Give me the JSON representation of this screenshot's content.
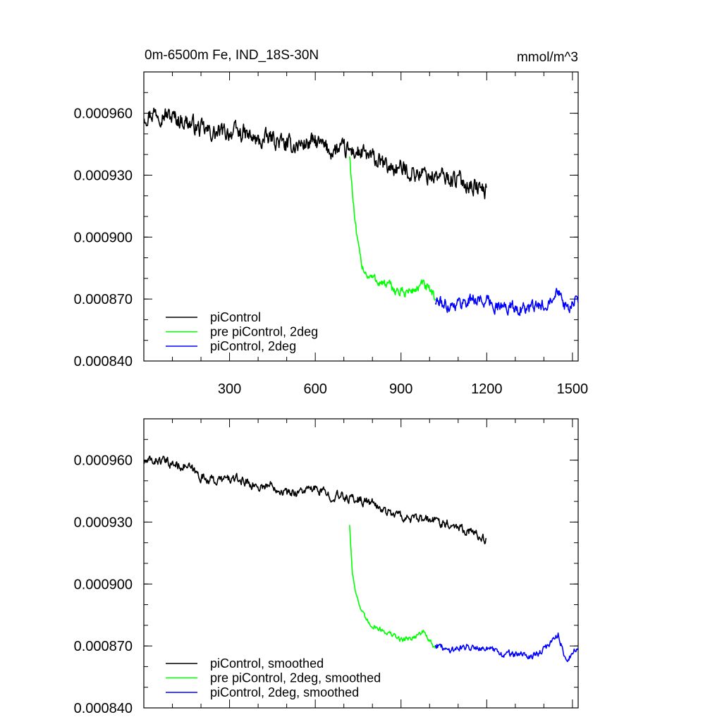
{
  "figure": {
    "title_left": "0m-6500m Fe, IND_18S-30N",
    "title_right": "mmol/m^3"
  },
  "chart_data": [
    {
      "type": "line",
      "title": "0m-6500m Fe, IND_18S-30N",
      "units": "mmol/m^3",
      "xlim": [
        0,
        1520
      ],
      "ylim": [
        0.00084,
        0.00098
      ],
      "x_ticks": [
        300,
        600,
        900,
        1200,
        1500
      ],
      "x_tick_labels": [
        "300",
        "600",
        "900",
        "1200",
        "1500"
      ],
      "y_ticks": [
        0.00084,
        0.00087,
        0.0009,
        0.00093,
        0.00096
      ],
      "y_tick_labels": [
        "0.000840",
        "0.000870",
        "0.000900",
        "0.000930",
        "0.000960"
      ],
      "legend_position": "bottom-left",
      "series": [
        {
          "name": "piControl",
          "color": "#000000",
          "x": [
            1,
            50,
            100,
            150,
            200,
            250,
            300,
            350,
            400,
            450,
            500,
            550,
            600,
            650,
            700,
            750,
            800,
            850,
            900,
            950,
            1000,
            1050,
            1100,
            1150,
            1200
          ],
          "y": [
            0.000959,
            0.000961,
            0.000958,
            0.000956,
            0.000952,
            0.00095,
            0.000951,
            0.00095,
            0.000946,
            0.000948,
            0.000944,
            0.000945,
            0.000946,
            0.000942,
            0.000942,
            0.000941,
            0.000938,
            0.000934,
            0.000933,
            0.000931,
            0.00093,
            0.000929,
            0.000928,
            0.000925,
            0.000922
          ],
          "noise": 3.5e-06
        },
        {
          "name": "pre piControl, 2deg",
          "color": "#00ff00",
          "x": [
            720,
            730,
            740,
            750,
            760,
            780,
            800,
            830,
            860,
            900,
            940,
            980,
            1020
          ],
          "y": [
            0.00094,
            0.000922,
            0.000905,
            0.000895,
            0.000888,
            0.000882,
            0.00088,
            0.000878,
            0.000876,
            0.000873,
            0.000874,
            0.000877,
            0.00087
          ],
          "noise": 2e-06
        },
        {
          "name": "piControl, 2deg",
          "color": "#0000ff",
          "x": [
            1020,
            1060,
            1100,
            1150,
            1200,
            1250,
            1300,
            1350,
            1400,
            1450,
            1480,
            1520
          ],
          "y": [
            0.000869,
            0.000867,
            0.000868,
            0.00087,
            0.000869,
            0.000866,
            0.000866,
            0.000865,
            0.000867,
            0.000876,
            0.000864,
            0.00087
          ],
          "noise": 2.5e-06
        }
      ]
    },
    {
      "type": "line",
      "title": "",
      "xlim": [
        0,
        1520
      ],
      "ylim": [
        0.00084,
        0.00098
      ],
      "x_ticks": [
        300,
        600,
        900,
        1200,
        1500
      ],
      "x_tick_labels": [],
      "y_ticks": [
        0.00084,
        0.00087,
        0.0009,
        0.00093,
        0.00096
      ],
      "y_tick_labels": [
        "0.000840",
        "0.000870",
        "0.000900",
        "0.000930",
        "0.000960"
      ],
      "legend_position": "bottom-left",
      "series": [
        {
          "name": "piControl, smoothed",
          "color": "#000000",
          "x": [
            1,
            50,
            100,
            150,
            200,
            250,
            300,
            350,
            400,
            450,
            500,
            550,
            600,
            650,
            700,
            750,
            800,
            850,
            900,
            950,
            1000,
            1050,
            1100,
            1150,
            1200
          ],
          "y": [
            0.000959,
            0.00096,
            0.000958,
            0.000957,
            0.000952,
            0.00095,
            0.000951,
            0.00095,
            0.000947,
            0.000948,
            0.000944,
            0.000945,
            0.000946,
            0.000943,
            0.000942,
            0.000941,
            0.000939,
            0.000935,
            0.000933,
            0.000931,
            0.000931,
            0.00093,
            0.000928,
            0.000925,
            0.000921
          ],
          "noise": 1.8e-06
        },
        {
          "name": "pre piControl, 2deg, smoothed",
          "color": "#00ff00",
          "x": [
            720,
            730,
            740,
            750,
            760,
            780,
            800,
            830,
            860,
            900,
            940,
            980,
            1020
          ],
          "y": [
            0.000929,
            0.000905,
            0.000898,
            0.000892,
            0.000887,
            0.000882,
            0.00088,
            0.000878,
            0.000876,
            0.000873,
            0.000874,
            0.000877,
            0.000868
          ],
          "noise": 1e-06
        },
        {
          "name": "piControl, 2deg, smoothed",
          "color": "#0000ff",
          "x": [
            1020,
            1060,
            1100,
            1150,
            1200,
            1250,
            1300,
            1350,
            1400,
            1450,
            1480,
            1520
          ],
          "y": [
            0.000871,
            0.000868,
            0.000869,
            0.00087,
            0.000869,
            0.000866,
            0.000866,
            0.000865,
            0.000868,
            0.000876,
            0.000862,
            0.00087
          ],
          "noise": 1.3e-06
        }
      ]
    }
  ]
}
